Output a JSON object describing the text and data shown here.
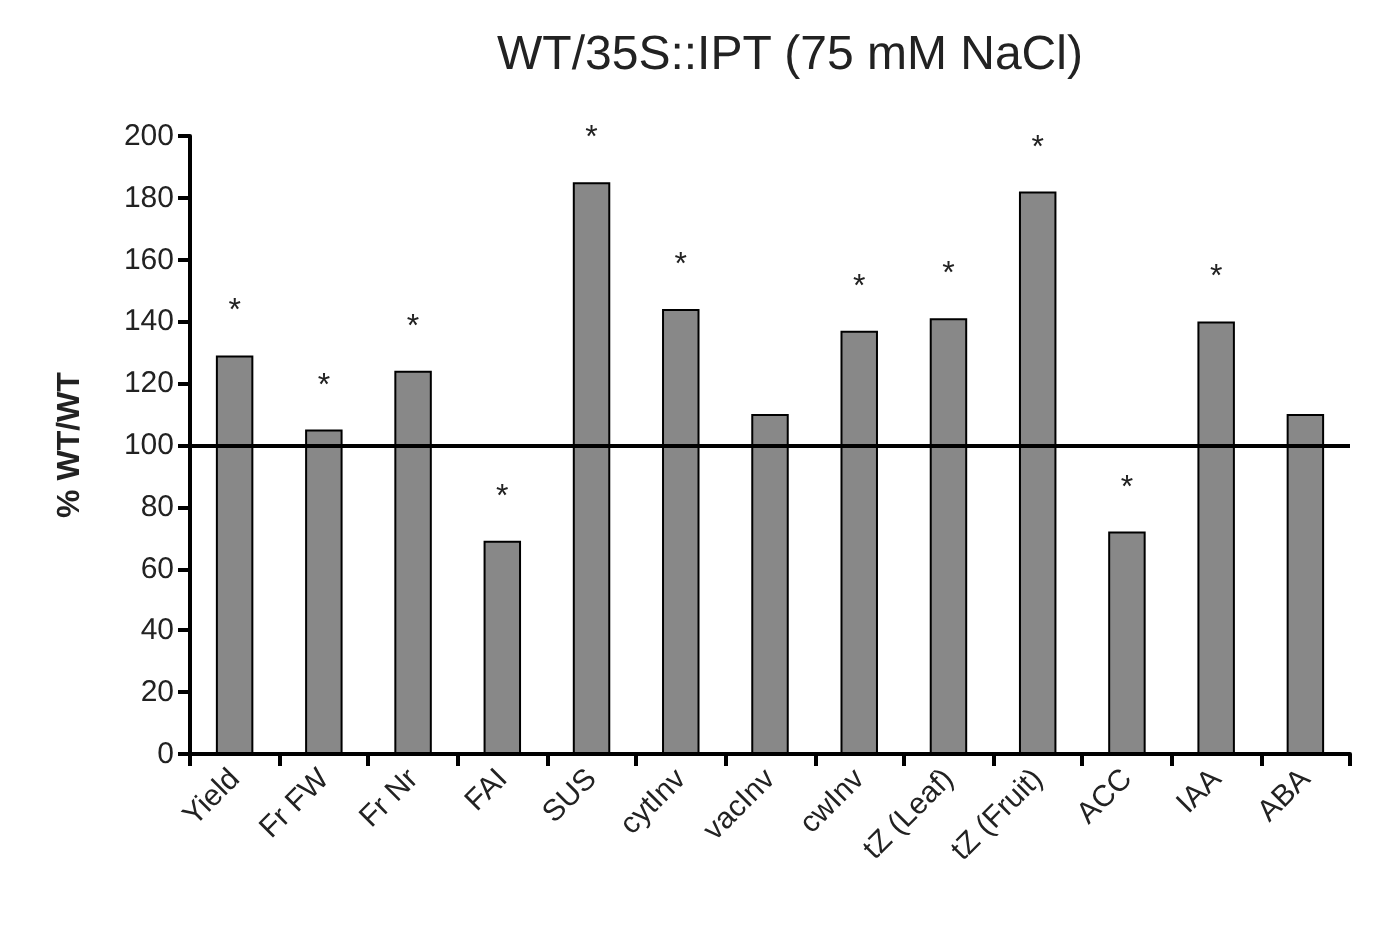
{
  "chart_data": {
    "type": "bar",
    "title": "WT/35S::IPT (75 mM NaCl)",
    "ylabel": "% WT/WT",
    "categories": [
      "Yield",
      "Fr FW",
      "Fr Nr",
      "FAI",
      "SUS",
      "cytInv",
      "vacInv",
      "cwInv",
      "tZ (Leaf)",
      "tZ (Fruit)",
      "ACC",
      "IAA",
      "ABA"
    ],
    "values": [
      129,
      105,
      124,
      69,
      185,
      144,
      110,
      137,
      141,
      182,
      72,
      140,
      110
    ],
    "color": "#888888",
    "ylim": [
      0,
      200
    ],
    "yticks": [
      0,
      20,
      40,
      60,
      80,
      100,
      120,
      140,
      160,
      180,
      200
    ],
    "grid": false,
    "ref_lines": [
      {
        "axis": "y",
        "value": 100,
        "color": "#000000"
      }
    ],
    "annotations": [
      {
        "text": "*",
        "x": "Yield",
        "y": 129
      },
      {
        "text": "*",
        "x": "Fr FW",
        "y": 105
      },
      {
        "text": "*",
        "x": "Fr Nr",
        "y": 124
      },
      {
        "text": "*",
        "x": "FAI",
        "y": 69
      },
      {
        "text": "*",
        "x": "SUS",
        "y": 185
      },
      {
        "text": "*",
        "x": "cytInv",
        "y": 144
      },
      {
        "text": "*",
        "x": "cwInv",
        "y": 137
      },
      {
        "text": "*",
        "x": "tZ (Leaf)",
        "y": 141
      },
      {
        "text": "*",
        "x": "tZ (Fruit)",
        "y": 182
      },
      {
        "text": "*",
        "x": "ACC",
        "y": 72
      },
      {
        "text": "*",
        "x": "IAA",
        "y": 140
      }
    ]
  }
}
